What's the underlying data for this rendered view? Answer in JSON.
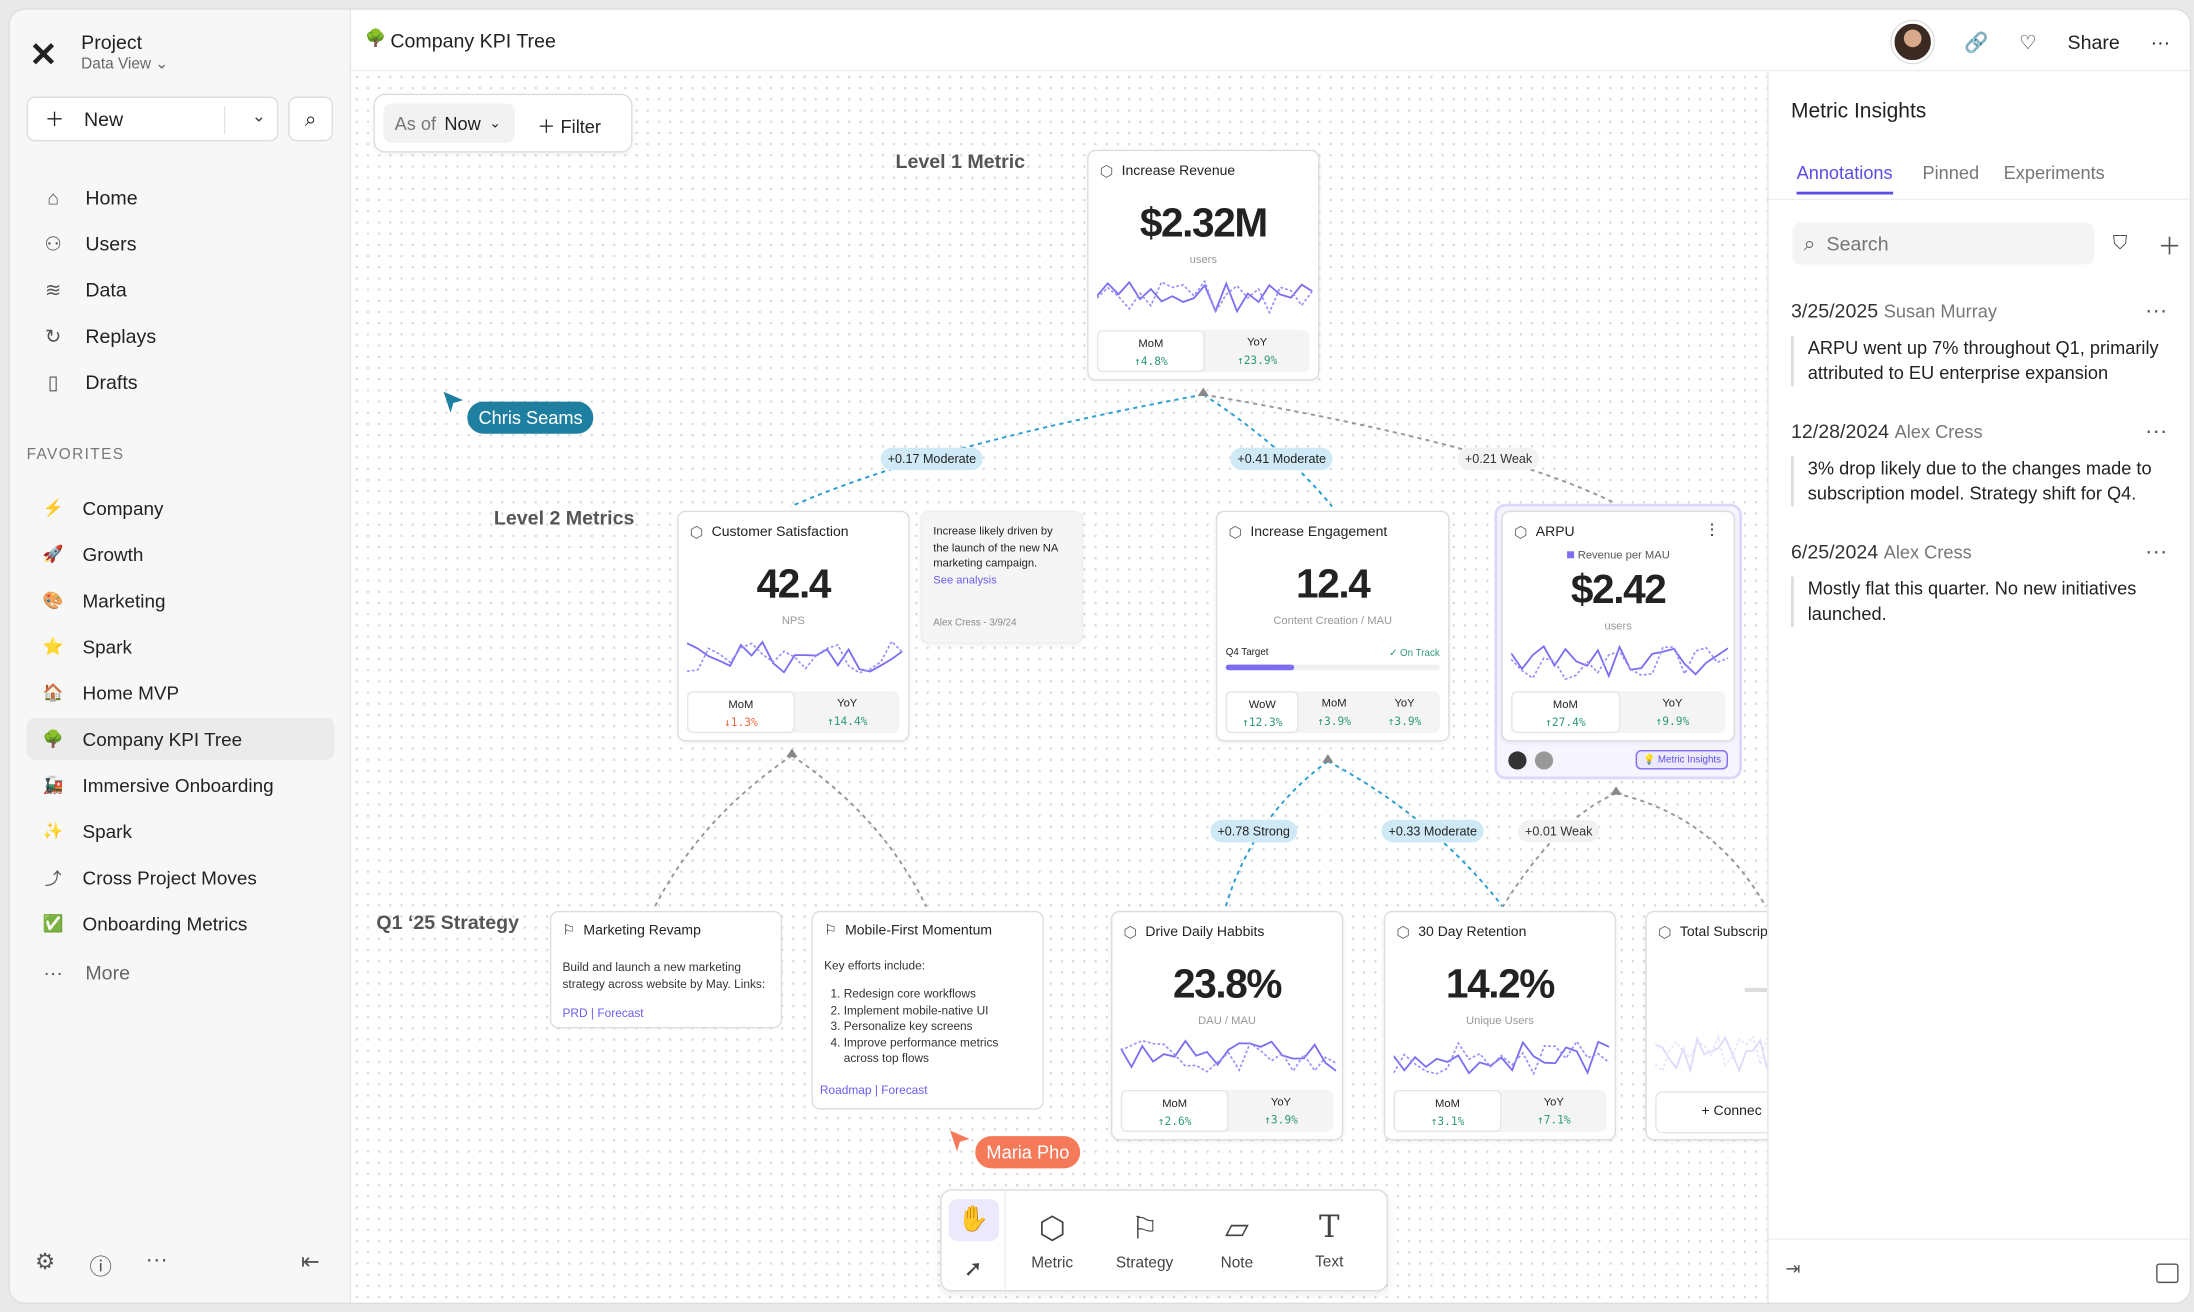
{
  "project": {
    "name": "Project",
    "view": "Data View"
  },
  "sidebar": {
    "new_label": "New",
    "nav": [
      {
        "label": "Home",
        "icon": "home-icon"
      },
      {
        "label": "Users",
        "icon": "users-icon"
      },
      {
        "label": "Data",
        "icon": "database-icon"
      },
      {
        "label": "Replays",
        "icon": "replay-icon"
      },
      {
        "label": "Drafts",
        "icon": "file-icon"
      }
    ],
    "favorites_heading": "FAVORITES",
    "favorites": [
      {
        "label": "Company",
        "emoji": "⚡"
      },
      {
        "label": "Growth",
        "emoji": "🚀"
      },
      {
        "label": "Marketing",
        "emoji": "🎨"
      },
      {
        "label": "Spark",
        "emoji": "⭐"
      },
      {
        "label": "Home MVP",
        "emoji": "🏠"
      },
      {
        "label": "Company KPI Tree",
        "emoji": "🌳",
        "active": true
      },
      {
        "label": "Immersive Onboarding",
        "emoji": "🚂"
      },
      {
        "label": "Spark",
        "emoji": "✨"
      },
      {
        "label": "Cross Project Moves",
        "emoji": "⤴"
      },
      {
        "label": "Onboarding Metrics",
        "emoji": "✅"
      }
    ],
    "more_label": "More"
  },
  "header": {
    "title": "Company KPI Tree",
    "share_label": "Share"
  },
  "filter": {
    "as_of_label": "As of",
    "as_of_value": "Now",
    "filter_label": "Filter"
  },
  "levels": {
    "l1": "Level 1 Metric",
    "l2": "Level 2 Metrics",
    "strategy": "Q1 ‘25 Strategy"
  },
  "metrics": [
    {
      "id": "revenue",
      "title": "Increase Revenue",
      "value": "$2.32M",
      "unit": "users",
      "compare": [
        {
          "label": "MoM",
          "value": "↑4.8%",
          "dir": "up"
        },
        {
          "label": "YoY",
          "value": "↑23.9%",
          "dir": "up"
        }
      ]
    },
    {
      "id": "csat",
      "title": "Customer Satisfaction",
      "value": "42.4",
      "unit": "NPS",
      "compare": [
        {
          "label": "MoM",
          "value": "↓1.3%",
          "dir": "down"
        },
        {
          "label": "YoY",
          "value": "↑14.4%",
          "dir": "up"
        }
      ]
    },
    {
      "id": "engagement",
      "title": "Increase Engagement",
      "value": "12.4",
      "unit": "Content Creation / MAU",
      "target_label": "Q4 Target",
      "target_status": "✓ On Track",
      "target_progress": 0.32,
      "compare": [
        {
          "label": "WoW",
          "value": "↑12.3%",
          "dir": "up"
        },
        {
          "label": "MoM",
          "value": "↑3.9%",
          "dir": "up"
        },
        {
          "label": "YoY",
          "value": "↑3.9%",
          "dir": "up"
        }
      ]
    },
    {
      "id": "arpu",
      "title": "ARPU",
      "legend": "Revenue per MAU",
      "value": "$2.42",
      "unit": "users",
      "badge": "Metric Insights",
      "compare": [
        {
          "label": "MoM",
          "value": "↑27.4%",
          "dir": "up"
        },
        {
          "label": "YoY",
          "value": "↑9.9%",
          "dir": "up"
        }
      ]
    },
    {
      "id": "habits",
      "title": "Drive Daily Habbits",
      "value": "23.8%",
      "unit": "DAU / MAU",
      "compare": [
        {
          "label": "MoM",
          "value": "↑2.6%",
          "dir": "up"
        },
        {
          "label": "YoY",
          "value": "↑3.9%",
          "dir": "up"
        }
      ]
    },
    {
      "id": "retention",
      "title": "30 Day Retention",
      "value": "14.2%",
      "unit": "Unique Users",
      "compare": [
        {
          "label": "MoM",
          "value": "↑3.1%",
          "dir": "up"
        },
        {
          "label": "YoY",
          "value": "↑7.1%",
          "dir": "up"
        }
      ]
    },
    {
      "id": "subs",
      "title": "Total Subscript",
      "connect_label": "+ Connec"
    }
  ],
  "note": {
    "text": "Increase likely driven by the launch of the new NA marketing campaign.",
    "link": "See analysis",
    "author": "Alex Cress - 3/9/24"
  },
  "strategies": [
    {
      "title": "Marketing Revamp",
      "body": "Build and launch a new marketing strategy across website by May. Links:",
      "links": [
        "PRD",
        "Forecast"
      ]
    },
    {
      "title": "Mobile-First Momentum",
      "body": "Key efforts include:",
      "items": [
        "Redesign core workflows",
        "Implement mobile-native UI",
        "Personalize key screens",
        "Improve performance metrics across top flows"
      ],
      "links": [
        "Roadmap",
        "Forecast"
      ]
    }
  ],
  "connections": [
    {
      "label": "+0.17 Moderate",
      "strength": "moderate"
    },
    {
      "label": "+0.41 Moderate",
      "strength": "moderate"
    },
    {
      "label": "+0.21 Weak",
      "strength": "weak"
    },
    {
      "label": "+0.78 Strong",
      "strength": "strong"
    },
    {
      "label": "+0.33 Moderate",
      "strength": "moderate"
    },
    {
      "label": "+0.01 Weak",
      "strength": "weak"
    }
  ],
  "cursors": [
    {
      "name": "Chris Seams",
      "color": "#1f7fa0"
    },
    {
      "name": "Maria Pho",
      "color": "#f47a5a"
    }
  ],
  "toolbar": {
    "tools": [
      {
        "label": "Metric",
        "icon": "hexagon-icon"
      },
      {
        "label": "Strategy",
        "icon": "flag-icon"
      },
      {
        "label": "Note",
        "icon": "note-icon"
      },
      {
        "label": "Text",
        "icon": "text-icon"
      }
    ]
  },
  "insights": {
    "title": "Metric Insights",
    "tabs": [
      "Annotations",
      "Pinned",
      "Experiments"
    ],
    "search_placeholder": "Search",
    "annotations": [
      {
        "date": "3/25/2025",
        "author": "Susan Murray",
        "text": "ARPU went up 7% throughout Q1, primarily attributed to EU enterprise expansion"
      },
      {
        "date": "12/28/2024",
        "author": "Alex Cress",
        "text": "3% drop likely due to the changes made to subscription model. Strategy shift for Q4."
      },
      {
        "date": "6/25/2024",
        "author": "Alex Cress",
        "text": "Mostly flat this quarter. No new initiatives launched."
      }
    ]
  },
  "colors": {
    "accent": "#5a4de6",
    "connector_strong": "#2a9fd0",
    "connector_weak": "#888888",
    "up": "#2f9a78",
    "down": "#ef6a45"
  }
}
